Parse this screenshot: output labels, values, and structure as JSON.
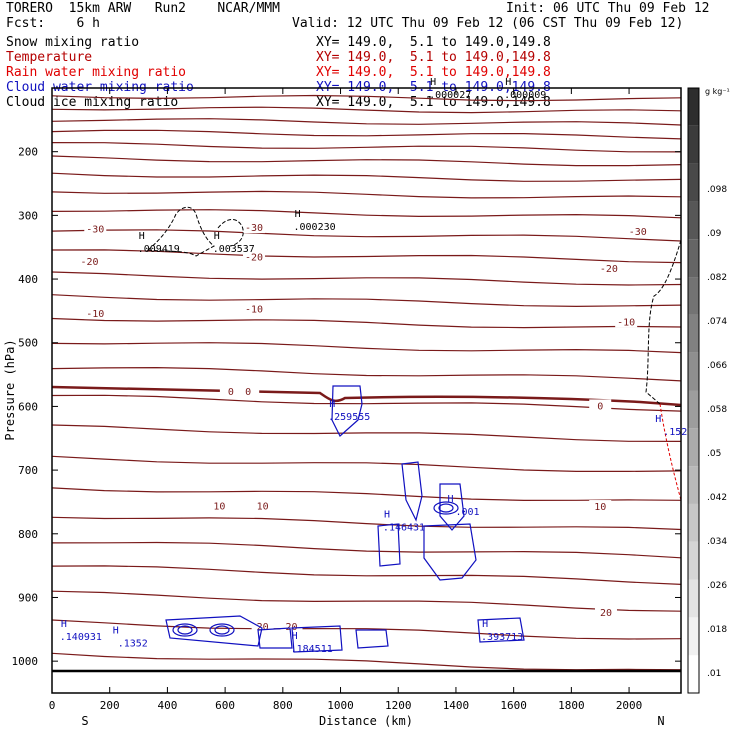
{
  "header": {
    "title": "TORERO  15km ARW   Run2    NCAR/MMM",
    "init": "Init: 06 UTC Thu 09 Feb 12",
    "fcst": "Fcst:    6 h",
    "valid": "Valid: 12 UTC Thu 09 Feb 12 (06 CST Thu 09 Feb 12)",
    "fields": [
      {
        "name": "Snow mixing ratio",
        "xsec": "XY= 149.0,  5.1 to 149.0,149.8",
        "color": "#000000"
      },
      {
        "name": "Temperature",
        "xsec": "XY= 149.0,  5.1 to 149.0,149.8",
        "color": "#b40000"
      },
      {
        "name": "Rain water mixing ratio",
        "xsec": "XY= 149.0,  5.1 to 149.0,149.8",
        "color": "#e00000"
      },
      {
        "name": "Cloud water mixing ratio",
        "xsec": "XY= 149.0,  5.1 to 149.0,149.8",
        "color": "#1010c0"
      },
      {
        "name": "Cloud ice mixing ratio",
        "xsec": "XY= 149.0,  5.1 to 149.0,149.8",
        "color": "#000000"
      }
    ]
  },
  "colorbar": {
    "unit": "g kg⁻¹",
    "ticks": [
      ".01",
      ".018",
      ".026",
      ".034",
      ".042",
      ".05",
      ".058",
      ".066",
      ".074",
      ".082",
      ".09",
      ".098"
    ]
  },
  "colors": {
    "temperature": "#7a1a1a",
    "cloud_water": "#1010c0",
    "snow": "#000000",
    "rain": "#e00000"
  },
  "chart_data": {
    "type": "contour",
    "xlabel": "Distance (km)",
    "ylabel": "Pressure (hPa)",
    "xlim": [
      0,
      2180
    ],
    "ylim": [
      1050,
      100
    ],
    "x_ticks": [
      0,
      200,
      400,
      600,
      800,
      1000,
      1200,
      1400,
      1600,
      1800,
      2000
    ],
    "y_ticks": [
      200,
      300,
      400,
      500,
      600,
      700,
      800,
      900,
      1000
    ],
    "endpoint_labels": {
      "left": "S",
      "right": "N"
    },
    "isotherm_labels": [
      {
        "text": "-30",
        "x": 150,
        "p": 322
      },
      {
        "text": "-30",
        "x": 700,
        "p": 320
      },
      {
        "text": "-30",
        "x": 2030,
        "p": 326
      },
      {
        "text": "-20",
        "x": 130,
        "p": 373
      },
      {
        "text": "-20",
        "x": 700,
        "p": 366
      },
      {
        "text": "-20",
        "x": 1930,
        "p": 384
      },
      {
        "text": "-10",
        "x": 150,
        "p": 455
      },
      {
        "text": "-10",
        "x": 700,
        "p": 448
      },
      {
        "text": "-10",
        "x": 1990,
        "p": 468
      },
      {
        "text": "0",
        "x": 620,
        "p": 577
      },
      {
        "text": "0",
        "x": 680,
        "p": 577
      },
      {
        "text": "0",
        "x": 1900,
        "p": 600
      },
      {
        "text": "10",
        "x": 580,
        "p": 757
      },
      {
        "text": "10",
        "x": 730,
        "p": 757
      },
      {
        "text": "10",
        "x": 1900,
        "p": 758
      },
      {
        "text": "20",
        "x": 730,
        "p": 946
      },
      {
        "text": "20",
        "x": 830,
        "p": 946
      },
      {
        "text": "20",
        "x": 1920,
        "p": 924
      }
    ],
    "maxima_labels": [
      {
        "text": ".009419",
        "x": 370,
        "p": 353,
        "color": "#000000"
      },
      {
        "text": ".003537",
        "x": 630,
        "p": 353,
        "color": "#000000"
      },
      {
        "text": ".000230",
        "x": 910,
        "p": 318,
        "color": "#000000"
      },
      {
        "text": ".000027",
        "x": 1380,
        "p": 111,
        "color": "#000000"
      },
      {
        "text": ".000009",
        "x": 1640,
        "p": 111,
        "color": "#000000"
      },
      {
        "text": ".259555",
        "x": 1030,
        "p": 617,
        "color": "#1010c0"
      },
      {
        "text": ".146431",
        "x": 1220,
        "p": 790,
        "color": "#1010c0"
      },
      {
        "text": ".001",
        "x": 1440,
        "p": 766,
        "color": "#1010c0"
      },
      {
        "text": ".140931",
        "x": 100,
        "p": 962,
        "color": "#1010c0"
      },
      {
        "text": ".1352",
        "x": 280,
        "p": 972,
        "color": "#1010c0"
      },
      {
        "text": ".184511",
        "x": 900,
        "p": 981,
        "color": "#1010c0"
      },
      {
        "text": ".393713",
        "x": 1560,
        "p": 962,
        "color": "#1010c0"
      },
      {
        "text": ".152",
        "x": 2160,
        "p": 640,
        "color": "#1010c0"
      }
    ]
  }
}
